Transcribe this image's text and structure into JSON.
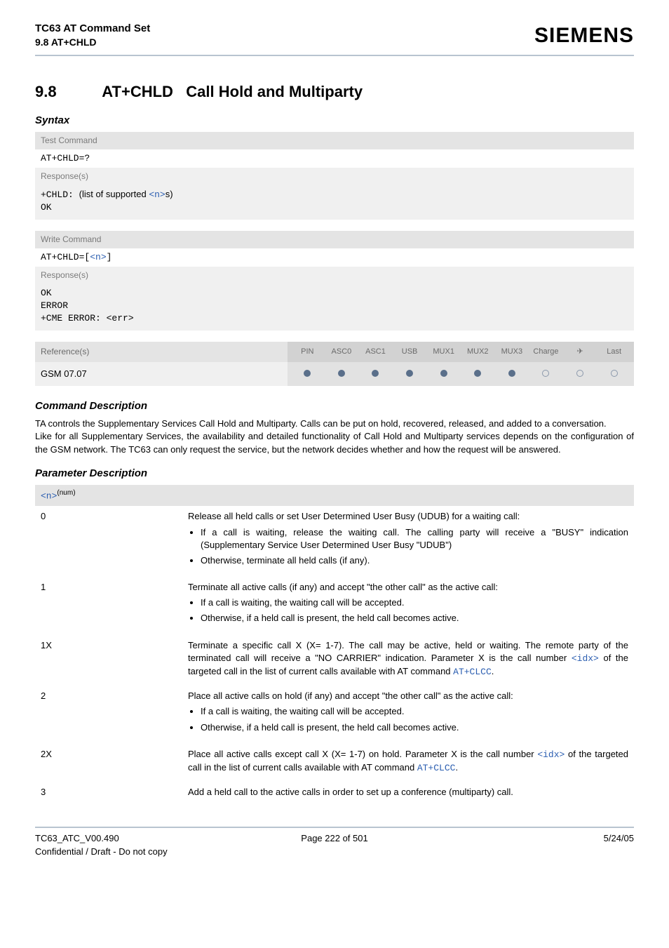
{
  "header": {
    "title_line1": "TC63 AT Command Set",
    "title_line2": "9.8 AT+CHLD",
    "logo": "SIEMENS"
  },
  "section": {
    "number": "9.8",
    "cmd": "AT+CHLD",
    "title": "Call Hold and Multiparty"
  },
  "syntax_label": "Syntax",
  "test_block": {
    "label": "Test Command",
    "cmd": "AT+CHLD=?",
    "resp_label": "Response(s)",
    "resp_prefix": "+CHLD: ",
    "resp_text1": "(list of supported ",
    "resp_link": "<n>",
    "resp_text2": "s)",
    "ok": "OK"
  },
  "write_block": {
    "label": "Write Command",
    "cmd_prefix": "AT+CHLD=",
    "cmd_bracket_open": "[",
    "cmd_link": "<n>",
    "cmd_bracket_close": "]",
    "resp_label": "Response(s)",
    "line1": "OK",
    "line2": "ERROR",
    "line3": "+CME ERROR: <err>"
  },
  "ref": {
    "label": "Reference(s)",
    "value": "GSM 07.07",
    "cols": [
      "PIN",
      "ASC0",
      "ASC1",
      "USB",
      "MUX1",
      "MUX2",
      "MUX3",
      "Charge",
      "✈",
      "Last"
    ],
    "dots": [
      "filled",
      "filled",
      "filled",
      "filled",
      "filled",
      "filled",
      "filled",
      "open",
      "open",
      "open"
    ]
  },
  "cmd_desc": {
    "heading": "Command Description",
    "p1": "TA controls the Supplementary Services Call Hold and Multiparty. Calls can be put on hold, recovered, released, and added to a conversation.",
    "p2": "Like for all Supplementary Services, the availability and detailed functionality of Call Hold and Multiparty services depends on the configuration of the GSM network. The TC63 can only request the service, but the network decides whether and how the request will be answered."
  },
  "param": {
    "heading": "Parameter Description",
    "name": "<n>",
    "sup": "(num)",
    "rows": [
      {
        "key": "0",
        "lead": "Release all held calls or set User Determined User Busy (UDUB) for a waiting call:",
        "bullets": [
          "If a call is waiting, release the waiting call. The calling party will receive a \"BUSY\" indication (Supplementary Service User Determined User Busy \"UDUB\")",
          "Otherwise, terminate all held calls (if any)."
        ]
      },
      {
        "key": "1",
        "lead": "Terminate all active calls (if any) and accept \"the other call\" as the active call:",
        "bullets": [
          "If a call is waiting, the waiting call will be accepted.",
          "Otherwise, if a held call is present, the held call becomes active."
        ]
      },
      {
        "key": "1X",
        "html": "Terminate a specific call X (X= 1-7). The call may be active, held or waiting. The remote party of the terminated call will receive a \"NO CARRIER\" indication. Parameter X is the call number <span class=\"mono link\">&lt;idx&gt;</span> of the targeted call in the list of current calls available with AT command <span class=\"mono link\">AT+CLCC</span>."
      },
      {
        "key": "2",
        "lead": "Place all active calls on hold (if any) and accept \"the other call\" as the active call:",
        "bullets": [
          "If a call is waiting, the waiting call will be accepted.",
          "Otherwise, if a held call is present, the held call becomes active."
        ]
      },
      {
        "key": "2X",
        "html": "Place all active calls except call X (X= 1-7) on hold. Parameter X is the call number <span class=\"mono link\">&lt;idx&gt;</span> of the targeted call in the list of current calls available with AT command <span class=\"mono link\">AT+CLCC</span>."
      },
      {
        "key": "3",
        "lead": "Add a held call to the active calls in order to set up a conference (multiparty) call."
      }
    ]
  },
  "footer": {
    "l1": "TC63_ATC_V00.490",
    "l2": "Confidential / Draft - Do not copy",
    "center": "Page 222 of 501",
    "right": "5/24/05"
  }
}
